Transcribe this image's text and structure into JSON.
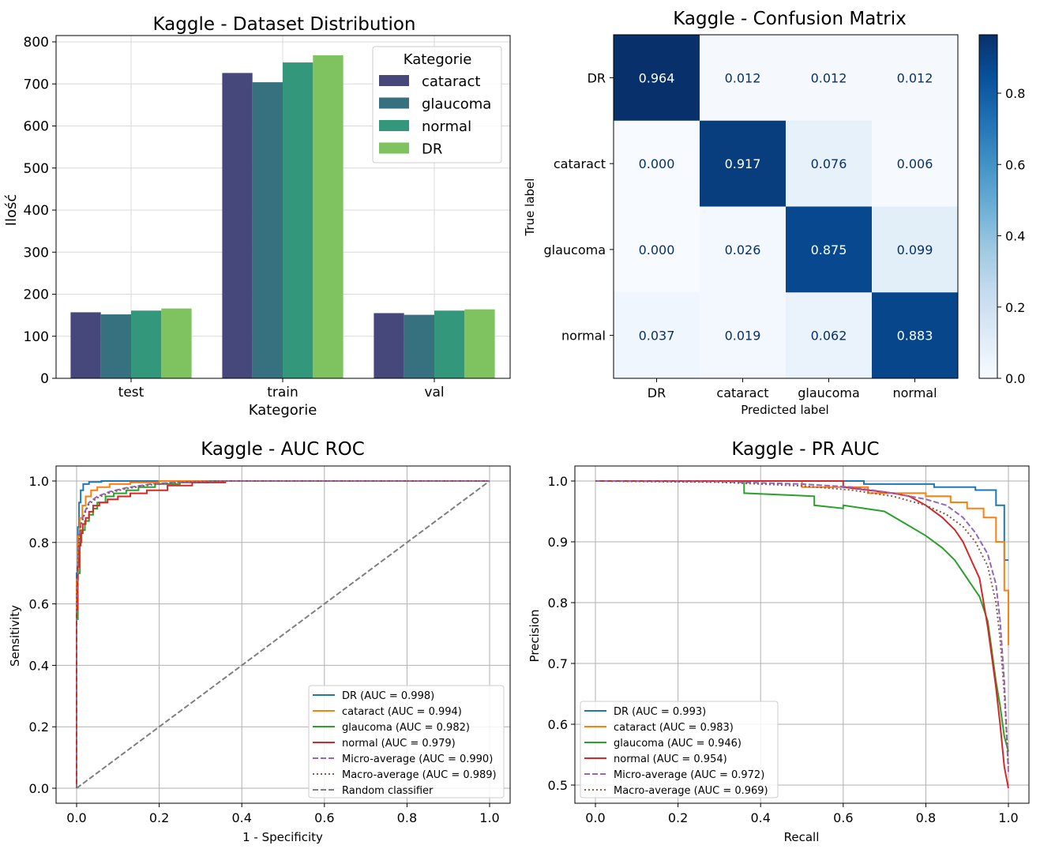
{
  "chart_data": [
    {
      "type": "bar",
      "title": "Kaggle - Dataset Distribution",
      "xlabel": "Kategorie",
      "ylabel": "Ilość",
      "ylim": [
        0,
        810
      ],
      "yticks": [
        0,
        100,
        200,
        300,
        400,
        500,
        600,
        700,
        800
      ],
      "grid": true,
      "categories": [
        "test",
        "train",
        "val"
      ],
      "legend": {
        "title": "Kategorie",
        "placement": "top-right"
      },
      "series": [
        {
          "name": "cataract",
          "color": "#46477a",
          "values": [
            157,
            726,
            155
          ]
        },
        {
          "name": "glaucoma",
          "color": "#37707f",
          "values": [
            152,
            704,
            151
          ]
        },
        {
          "name": "normal",
          "color": "#33977b",
          "values": [
            161,
            751,
            161
          ]
        },
        {
          "name": "DR",
          "color": "#7ec35f",
          "values": [
            166,
            768,
            164
          ]
        }
      ]
    },
    {
      "type": "heatmap",
      "title": "Kaggle - Confusion Matrix",
      "xlabel": "Predicted label",
      "ylabel": "True label",
      "x_categories": [
        "DR",
        "cataract",
        "glaucoma",
        "normal"
      ],
      "y_categories": [
        "DR",
        "cataract",
        "glaucoma",
        "normal"
      ],
      "values": [
        [
          0.964,
          0.012,
          0.012,
          0.012
        ],
        [
          0.0,
          0.917,
          0.076,
          0.006
        ],
        [
          0.0,
          0.026,
          0.875,
          0.099
        ],
        [
          0.037,
          0.019,
          0.062,
          0.883
        ]
      ],
      "value_labels": [
        [
          "0.964",
          "0.012",
          "0.012",
          "0.012"
        ],
        [
          "0.000",
          "0.917",
          "0.076",
          "0.006"
        ],
        [
          "0.000",
          "0.026",
          "0.875",
          "0.099"
        ],
        [
          "0.037",
          "0.019",
          "0.062",
          "0.883"
        ]
      ],
      "colormap": "Blues",
      "colorbar_range": [
        0,
        0.964
      ],
      "colorbar_ticks": [
        "0.0",
        "0.2",
        "0.4",
        "0.6",
        "0.8"
      ]
    },
    {
      "type": "line",
      "title": "Kaggle - AUC ROC",
      "xlabel": "1 - Specificity",
      "ylabel": "Sensitivity",
      "xlim": [
        -0.05,
        1.05
      ],
      "ylim": [
        -0.05,
        1.05
      ],
      "xticks": [
        "0.0",
        "0.2",
        "0.4",
        "0.6",
        "0.8",
        "1.0"
      ],
      "yticks": [
        "0.0",
        "0.2",
        "0.4",
        "0.6",
        "0.8",
        "1.0"
      ],
      "grid": true,
      "legend": {
        "placement": "lower-right"
      },
      "series": [
        {
          "name": "DR (AUC = 0.998)",
          "color": "#1f77b4",
          "style": "solid",
          "x": [
            0,
            0,
            0.003,
            0.003,
            0.006,
            0.006,
            0.01,
            0.01,
            0.016,
            0.016,
            0.03,
            0.03,
            0.06,
            0.06,
            1.0
          ],
          "y": [
            0,
            0.7,
            0.7,
            0.85,
            0.85,
            0.93,
            0.93,
            0.97,
            0.97,
            0.99,
            0.99,
            0.997,
            0.997,
            1.0,
            1.0
          ]
        },
        {
          "name": "cataract (AUC = 0.994)",
          "color": "#ff7f0e",
          "style": "solid",
          "x": [
            0,
            0,
            0.004,
            0.004,
            0.008,
            0.008,
            0.014,
            0.014,
            0.022,
            0.022,
            0.035,
            0.035,
            0.05,
            0.05,
            0.08,
            0.08,
            0.13,
            0.13,
            0.2,
            0.2,
            1.0
          ],
          "y": [
            0,
            0.68,
            0.68,
            0.82,
            0.82,
            0.88,
            0.88,
            0.92,
            0.92,
            0.95,
            0.95,
            0.97,
            0.97,
            0.98,
            0.98,
            0.99,
            0.99,
            0.995,
            0.995,
            1.0,
            1.0
          ]
        },
        {
          "name": "glaucoma (AUC = 0.982)",
          "color": "#2ca02c",
          "style": "solid",
          "x": [
            0,
            0,
            0.003,
            0.003,
            0.008,
            0.008,
            0.012,
            0.012,
            0.02,
            0.02,
            0.03,
            0.03,
            0.04,
            0.04,
            0.05,
            0.05,
            0.07,
            0.07,
            0.09,
            0.09,
            0.12,
            0.12,
            0.15,
            0.15,
            0.19,
            0.19,
            0.25,
            0.25,
            0.32,
            0.32,
            1.0
          ],
          "y": [
            0,
            0.55,
            0.55,
            0.7,
            0.7,
            0.8,
            0.8,
            0.84,
            0.84,
            0.87,
            0.87,
            0.89,
            0.89,
            0.91,
            0.91,
            0.93,
            0.93,
            0.95,
            0.95,
            0.96,
            0.96,
            0.97,
            0.97,
            0.98,
            0.98,
            0.99,
            0.99,
            0.995,
            0.995,
            1.0,
            1.0
          ]
        },
        {
          "name": "normal (AUC = 0.979)",
          "color": "#d62728",
          "style": "solid",
          "x": [
            0,
            0,
            0.002,
            0.002,
            0.006,
            0.006,
            0.01,
            0.01,
            0.015,
            0.015,
            0.022,
            0.022,
            0.03,
            0.03,
            0.04,
            0.04,
            0.055,
            0.055,
            0.075,
            0.075,
            0.1,
            0.1,
            0.13,
            0.13,
            0.17,
            0.17,
            0.22,
            0.22,
            0.28,
            0.28,
            0.36,
            0.36,
            1.0
          ],
          "y": [
            0,
            0.58,
            0.58,
            0.72,
            0.72,
            0.79,
            0.79,
            0.83,
            0.83,
            0.86,
            0.86,
            0.88,
            0.88,
            0.9,
            0.9,
            0.92,
            0.92,
            0.93,
            0.93,
            0.94,
            0.94,
            0.95,
            0.95,
            0.96,
            0.96,
            0.97,
            0.97,
            0.985,
            0.985,
            0.995,
            0.995,
            1.0,
            1.0
          ]
        },
        {
          "name": "Micro-average (AUC = 0.990)",
          "color": "#9467bd",
          "style": "dashed",
          "x": [
            0,
            0,
            0.005,
            0.01,
            0.02,
            0.03,
            0.05,
            0.08,
            0.12,
            0.18,
            0.25,
            0.35,
            1.0
          ],
          "y": [
            0,
            0.62,
            0.8,
            0.86,
            0.9,
            0.93,
            0.95,
            0.965,
            0.978,
            0.99,
            0.997,
            1.0,
            1.0
          ]
        },
        {
          "name": "Macro-average (AUC = 0.989)",
          "color": "#8c564b",
          "style": "dotted",
          "x": [
            0,
            0,
            0.005,
            0.01,
            0.02,
            0.03,
            0.05,
            0.08,
            0.12,
            0.18,
            0.25,
            0.35,
            1.0
          ],
          "y": [
            0,
            0.62,
            0.79,
            0.855,
            0.895,
            0.925,
            0.945,
            0.962,
            0.975,
            0.988,
            0.996,
            1.0,
            1.0
          ]
        },
        {
          "name": "Random classifier",
          "color": "#7f7f7f",
          "style": "dashed",
          "x": [
            0,
            1
          ],
          "y": [
            0,
            1
          ]
        }
      ]
    },
    {
      "type": "line",
      "title": "Kaggle - PR AUC",
      "xlabel": "Recall",
      "ylabel": "Precision",
      "xlim": [
        -0.05,
        1.05
      ],
      "ylim": [
        0.48,
        1.02
      ],
      "xticks": [
        "0.0",
        "0.2",
        "0.4",
        "0.6",
        "0.8",
        "1.0"
      ],
      "yticks": [
        "0.5",
        "0.6",
        "0.7",
        "0.8",
        "0.9",
        "1.0"
      ],
      "grid": true,
      "legend": {
        "placement": "lower-left"
      },
      "series": [
        {
          "name": "DR (AUC = 0.993)",
          "color": "#1f77b4",
          "style": "solid",
          "x": [
            0,
            0.65,
            0.65,
            0.82,
            0.82,
            0.92,
            0.92,
            0.97,
            0.97,
            0.99,
            0.99,
            1.0,
            1.0
          ],
          "y": [
            1.0,
            1.0,
            0.995,
            0.995,
            0.99,
            0.99,
            0.985,
            0.985,
            0.96,
            0.96,
            0.87,
            0.87,
            0.87
          ]
        },
        {
          "name": "cataract (AUC = 0.983)",
          "color": "#ff7f0e",
          "style": "solid",
          "x": [
            0,
            0.5,
            0.5,
            0.66,
            0.66,
            0.8,
            0.8,
            0.86,
            0.86,
            0.9,
            0.9,
            0.94,
            0.94,
            0.97,
            0.97,
            0.99,
            0.99,
            1.0,
            1.0
          ],
          "y": [
            1.0,
            1.0,
            0.99,
            0.99,
            0.98,
            0.98,
            0.975,
            0.975,
            0.965,
            0.965,
            0.955,
            0.955,
            0.94,
            0.94,
            0.9,
            0.9,
            0.82,
            0.82,
            0.73
          ]
        },
        {
          "name": "glaucoma (AUC = 0.946)",
          "color": "#2ca02c",
          "style": "solid",
          "x": [
            0,
            0.36,
            0.36,
            0.53,
            0.53,
            0.6,
            0.6,
            0.7,
            0.75,
            0.8,
            0.84,
            0.87,
            0.89,
            0.91,
            0.93,
            0.95,
            0.96,
            0.97,
            0.98,
            0.99,
            1.0
          ],
          "y": [
            1.0,
            1.0,
            0.98,
            0.975,
            0.96,
            0.955,
            0.96,
            0.95,
            0.93,
            0.91,
            0.89,
            0.87,
            0.85,
            0.83,
            0.81,
            0.77,
            0.72,
            0.67,
            0.63,
            0.58,
            0.555
          ]
        },
        {
          "name": "normal (AUC = 0.954)",
          "color": "#d62728",
          "style": "solid",
          "x": [
            0,
            0.6,
            0.6,
            0.72,
            0.76,
            0.8,
            0.84,
            0.87,
            0.89,
            0.91,
            0.93,
            0.94,
            0.95,
            0.96,
            0.97,
            0.98,
            0.99,
            1.0
          ],
          "y": [
            1.0,
            1.0,
            0.99,
            0.98,
            0.975,
            0.96,
            0.94,
            0.92,
            0.9,
            0.87,
            0.84,
            0.8,
            0.76,
            0.71,
            0.66,
            0.6,
            0.53,
            0.495
          ]
        },
        {
          "name": "Micro-average (AUC = 0.972)",
          "color": "#9467bd",
          "style": "dashed",
          "x": [
            0,
            0.3,
            0.5,
            0.62,
            0.72,
            0.8,
            0.85,
            0.89,
            0.92,
            0.95,
            0.97,
            0.98,
            0.99,
            1.0
          ],
          "y": [
            1.0,
            0.999,
            0.995,
            0.99,
            0.98,
            0.97,
            0.96,
            0.94,
            0.915,
            0.88,
            0.83,
            0.77,
            0.67,
            0.52
          ]
        },
        {
          "name": "Macro-average (AUC = 0.969)",
          "color": "#8c564b",
          "style": "dotted",
          "x": [
            0,
            0.3,
            0.5,
            0.62,
            0.72,
            0.8,
            0.85,
            0.89,
            0.92,
            0.95,
            0.97,
            0.98,
            0.99,
            1.0
          ],
          "y": [
            1.0,
            0.998,
            0.992,
            0.985,
            0.975,
            0.96,
            0.945,
            0.925,
            0.9,
            0.86,
            0.8,
            0.74,
            0.65,
            0.53
          ]
        }
      ]
    }
  ]
}
